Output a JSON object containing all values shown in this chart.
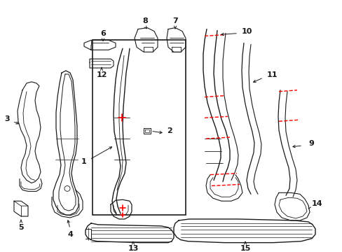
{
  "bg": "#ffffff",
  "lc": "#1a1a1a",
  "rc": "#ff0000",
  "fw": 4.89,
  "fh": 3.6,
  "dpi": 100,
  "fs": 8
}
